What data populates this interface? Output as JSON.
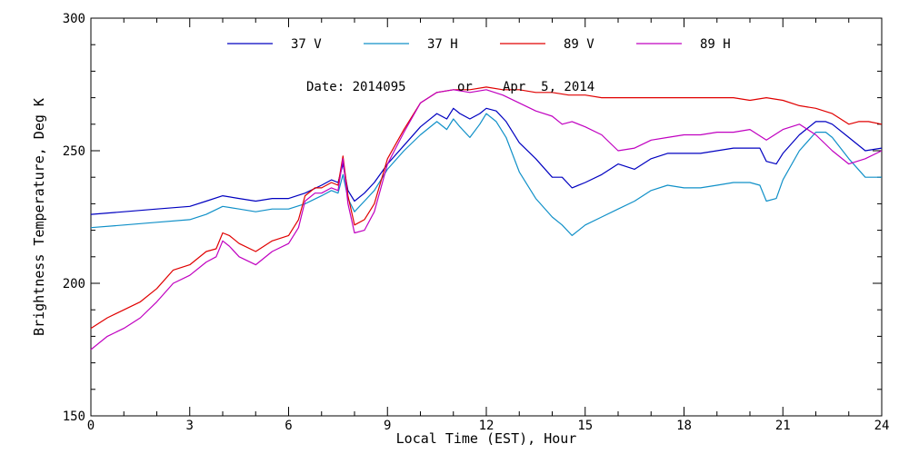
{
  "chart_data": {
    "type": "line",
    "title": "",
    "xlabel": "Local Time (EST), Hour",
    "ylabel": "Brightness Temperature, Deg K",
    "xlim": [
      0,
      24
    ],
    "ylim": [
      150,
      300
    ],
    "x_ticks": [
      0,
      3,
      6,
      9,
      12,
      15,
      18,
      21,
      24
    ],
    "y_ticks": [
      150,
      200,
      250,
      300
    ],
    "x_tick_labels": [
      "0",
      "3",
      "6",
      "9",
      "12",
      "15",
      "18",
      "21",
      "24"
    ],
    "y_tick_labels": [
      "150",
      "200",
      "250",
      "300"
    ],
    "grid": false,
    "legend_position": "top",
    "annotation": {
      "date_label": "Date: 2014095",
      "or_label": "or",
      "date_alt": "Apr  5, 2014"
    },
    "series": [
      {
        "name": "37 V",
        "color": "#0000c0",
        "x": [
          0,
          1,
          2,
          3,
          3.5,
          4,
          4.5,
          5,
          5.5,
          6,
          6.5,
          7,
          7.3,
          7.5,
          7.65,
          7.8,
          8,
          8.3,
          8.6,
          9,
          9.5,
          10,
          10.5,
          10.8,
          11,
          11.2,
          11.5,
          11.8,
          12,
          12.3,
          12.6,
          13,
          13.5,
          14,
          14.3,
          14.6,
          15,
          15.5,
          16,
          16.5,
          17,
          17.5,
          18,
          18.5,
          19,
          19.5,
          20,
          20.3,
          20.5,
          20.8,
          21,
          21.5,
          22,
          22.3,
          22.5,
          23,
          23.5,
          24
        ],
        "y": [
          226,
          227,
          228,
          229,
          231,
          233,
          232,
          231,
          232,
          232,
          234,
          237,
          239,
          238,
          245,
          235,
          231,
          234,
          238,
          245,
          252,
          259,
          264,
          262,
          266,
          264,
          262,
          264,
          266,
          265,
          261,
          253,
          247,
          240,
          240,
          236,
          238,
          241,
          245,
          243,
          247,
          249,
          249,
          249,
          250,
          251,
          251,
          251,
          246,
          245,
          249,
          256,
          261,
          261,
          260,
          255,
          250,
          251
        ]
      },
      {
        "name": "37 H",
        "color": "#1090c8",
        "x": [
          0,
          1,
          2,
          3,
          3.5,
          4,
          4.5,
          5,
          5.5,
          6,
          6.5,
          7,
          7.3,
          7.5,
          7.65,
          7.8,
          8,
          8.3,
          8.6,
          9,
          9.5,
          10,
          10.5,
          10.8,
          11,
          11.2,
          11.5,
          11.8,
          12,
          12.3,
          12.6,
          13,
          13.5,
          14,
          14.3,
          14.6,
          15,
          15.5,
          16,
          16.5,
          17,
          17.5,
          18,
          18.5,
          19,
          19.5,
          20,
          20.3,
          20.5,
          20.8,
          21,
          21.5,
          22,
          22.3,
          22.5,
          23,
          23.5,
          24
        ],
        "y": [
          221,
          222,
          223,
          224,
          226,
          229,
          228,
          227,
          228,
          228,
          230,
          233,
          235,
          234,
          241,
          232,
          227,
          231,
          235,
          243,
          250,
          256,
          261,
          258,
          262,
          259,
          255,
          260,
          264,
          261,
          255,
          242,
          232,
          225,
          222,
          218,
          222,
          225,
          228,
          231,
          235,
          237,
          236,
          236,
          237,
          238,
          238,
          237,
          231,
          232,
          239,
          250,
          257,
          257,
          255,
          247,
          240,
          240
        ]
      },
      {
        "name": "89 V",
        "color": "#e00000",
        "x": [
          0,
          0.5,
          1,
          1.5,
          2,
          2.5,
          3,
          3.5,
          3.8,
          4,
          4.2,
          4.5,
          5,
          5.5,
          6,
          6.3,
          6.5,
          6.8,
          7,
          7.3,
          7.5,
          7.65,
          7.8,
          8,
          8.3,
          8.6,
          9,
          9.5,
          10,
          10.5,
          11,
          11.5,
          12,
          12.5,
          13,
          13.5,
          14,
          14.5,
          15,
          15.5,
          16,
          16.5,
          17,
          17.5,
          18,
          18.5,
          19,
          19.5,
          20,
          20.5,
          21,
          21.5,
          22,
          22.5,
          23,
          23.3,
          23.6,
          24
        ],
        "y": [
          183,
          187,
          190,
          193,
          198,
          205,
          207,
          212,
          213,
          219,
          218,
          215,
          212,
          216,
          218,
          224,
          233,
          236,
          236,
          238,
          237,
          248,
          233,
          222,
          224,
          230,
          247,
          258,
          268,
          272,
          273,
          273,
          274,
          273,
          273,
          272,
          272,
          271,
          271,
          270,
          270,
          270,
          270,
          270,
          270,
          270,
          270,
          270,
          269,
          270,
          269,
          267,
          266,
          264,
          260,
          261,
          261,
          260
        ]
      },
      {
        "name": "89 H",
        "color": "#c000c0",
        "x": [
          0,
          0.5,
          1,
          1.5,
          2,
          2.5,
          3,
          3.5,
          3.8,
          4,
          4.2,
          4.5,
          5,
          5.5,
          6,
          6.3,
          6.5,
          6.8,
          7,
          7.3,
          7.5,
          7.65,
          7.8,
          8,
          8.3,
          8.6,
          9,
          9.5,
          10,
          10.5,
          11,
          11.5,
          12,
          12.5,
          13,
          13.5,
          14,
          14.3,
          14.6,
          15,
          15.5,
          16,
          16.5,
          17,
          17.5,
          18,
          18.5,
          19,
          19.5,
          20,
          20.5,
          21,
          21.5,
          22,
          22.5,
          23,
          23.5,
          24
        ],
        "y": [
          175,
          180,
          183,
          187,
          193,
          200,
          203,
          208,
          210,
          216,
          214,
          210,
          207,
          212,
          215,
          221,
          231,
          234,
          234,
          236,
          235,
          247,
          230,
          219,
          220,
          227,
          245,
          257,
          268,
          272,
          273,
          272,
          273,
          271,
          268,
          265,
          263,
          260,
          261,
          259,
          256,
          250,
          251,
          254,
          255,
          256,
          256,
          257,
          257,
          258,
          254,
          258,
          260,
          256,
          250,
          245,
          247,
          250
        ]
      }
    ]
  }
}
